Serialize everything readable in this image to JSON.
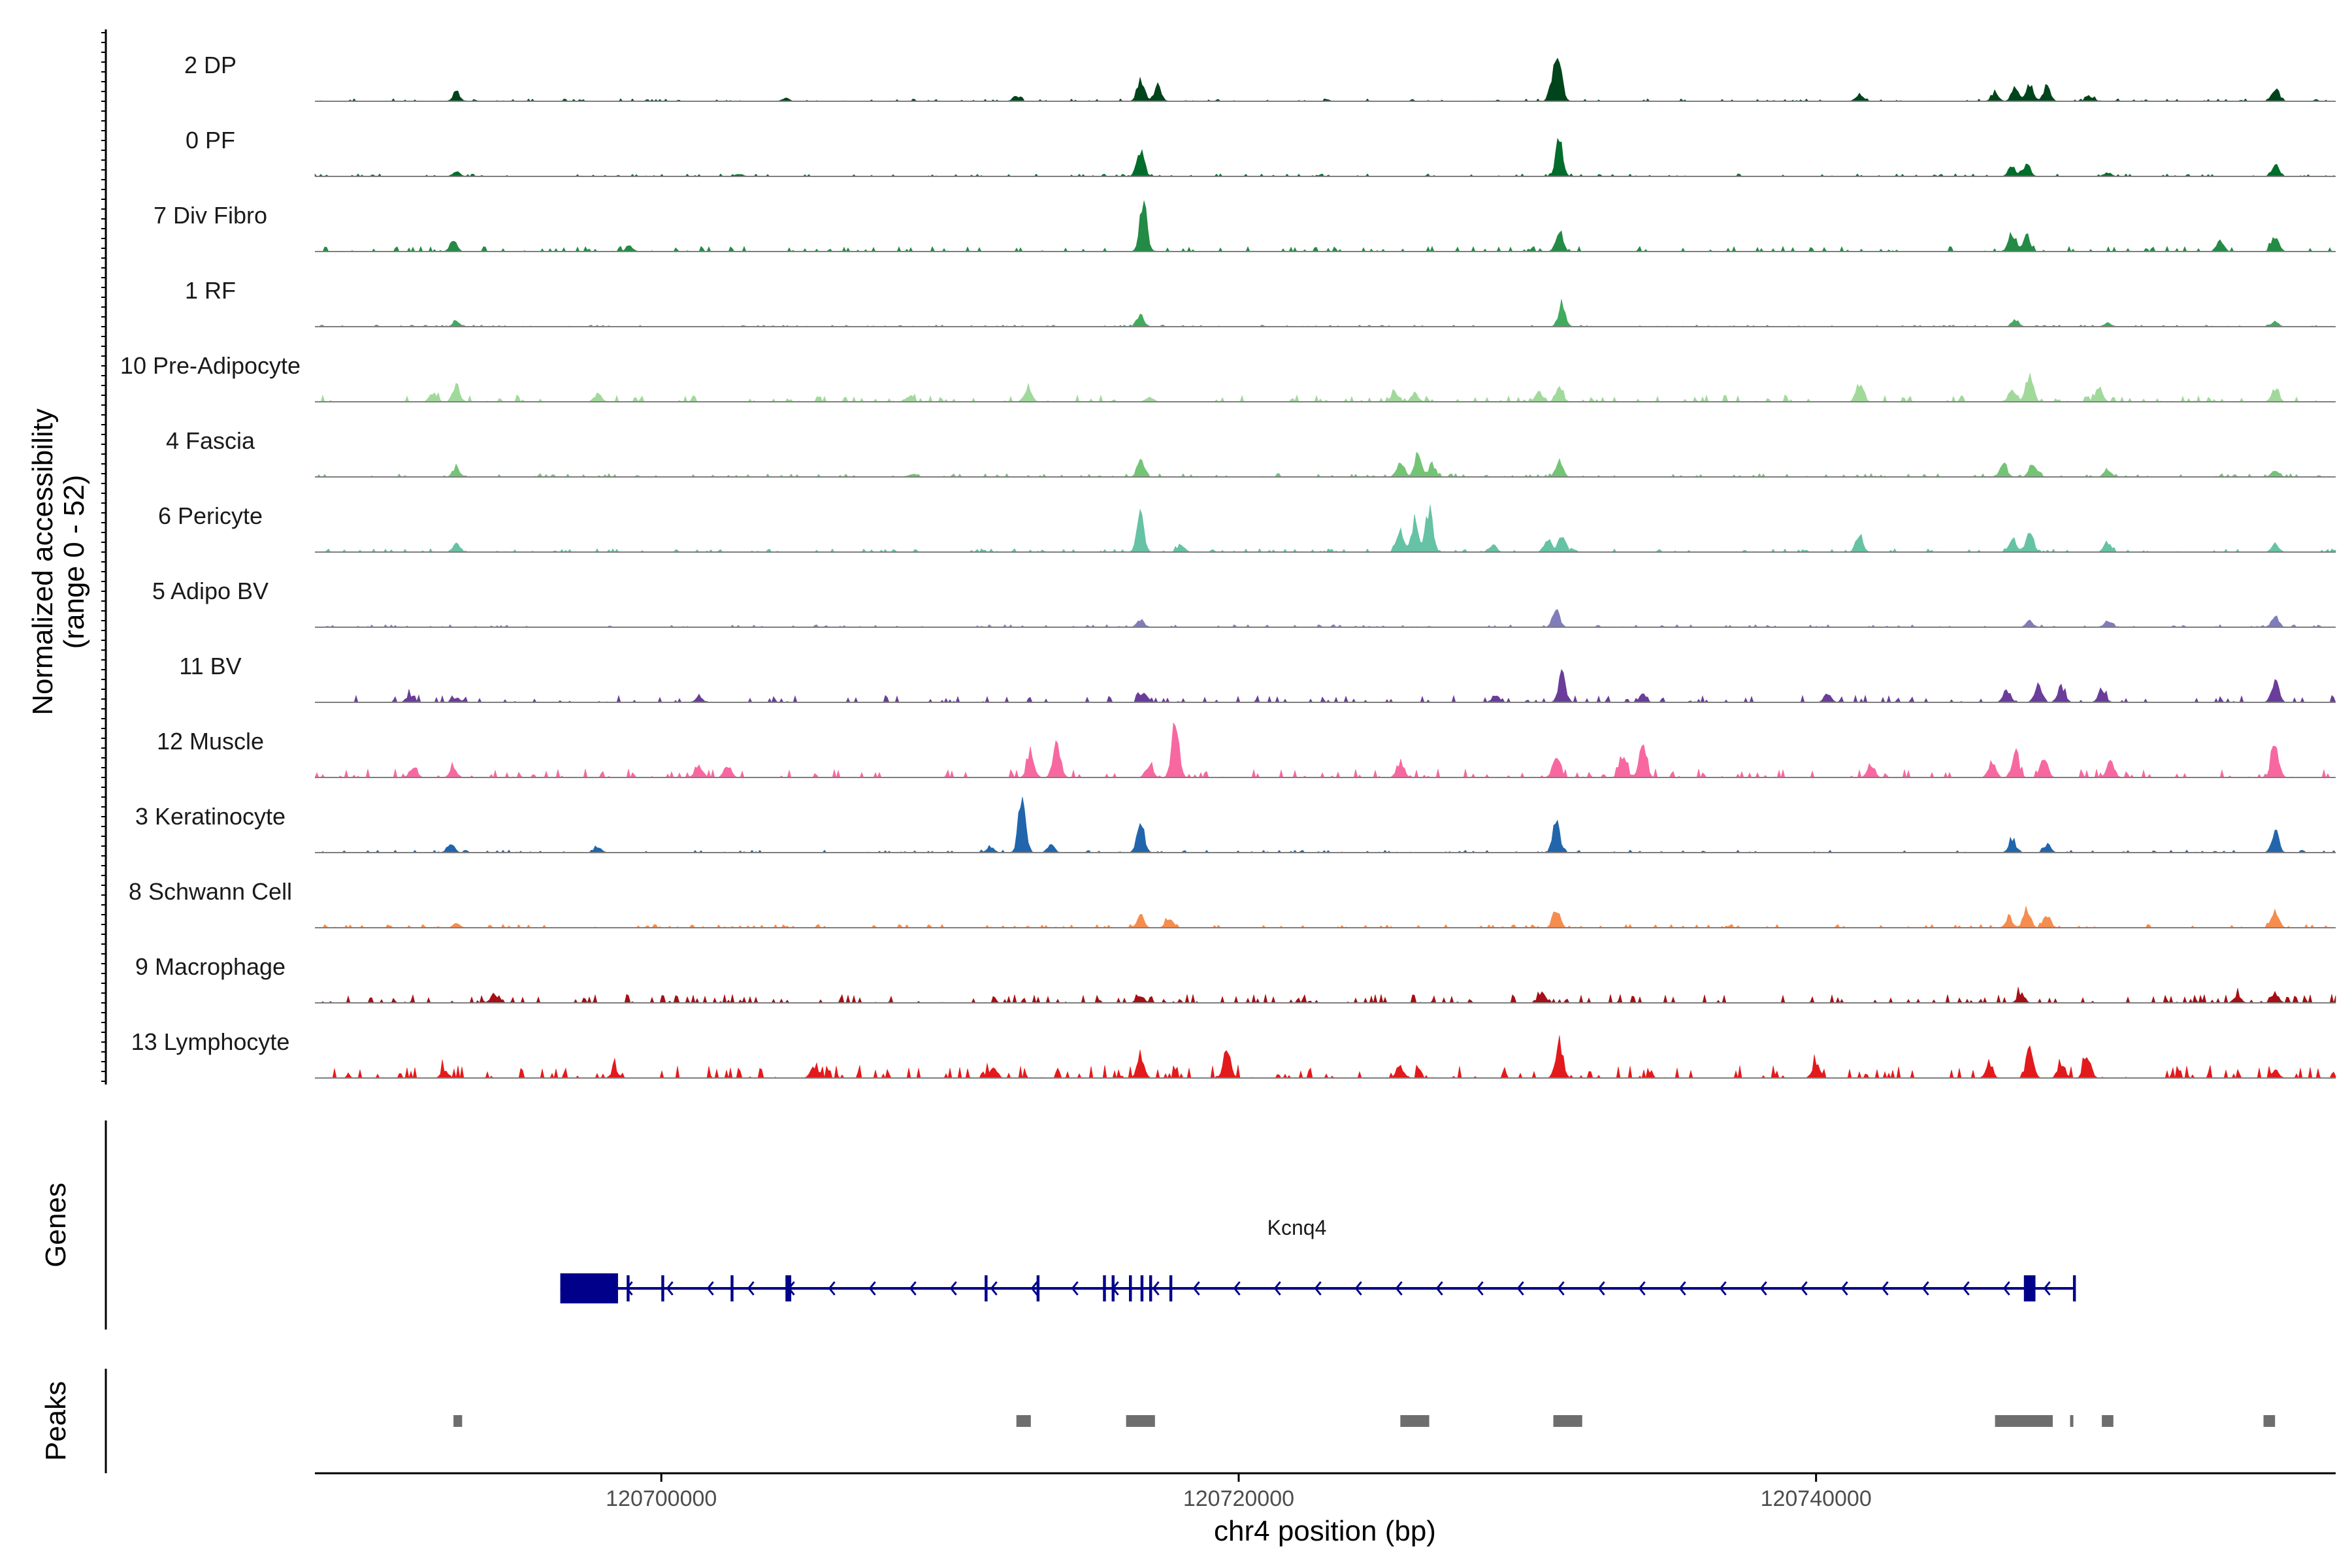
{
  "chart_data": {
    "type": "area",
    "title": "",
    "ylabel": "Normalized accessibility",
    "ylabel_range": "(range 0 - 52)",
    "yrange": [
      0,
      52
    ],
    "xlabel": "chr4 position (bp)",
    "chromosome": "chr4",
    "xlim": [
      120688000,
      120758000
    ],
    "xticks": [
      120700000,
      120720000,
      120740000
    ],
    "xtick_labels": [
      "120700000",
      "120720000",
      "120740000"
    ],
    "series": [
      {
        "name": "2 DP",
        "color": "#00441b",
        "peaks": [
          [
            120692900,
            0.15
          ],
          [
            120704300,
            0.05
          ],
          [
            120712300,
            0.08
          ],
          [
            120716600,
            0.35
          ],
          [
            120717200,
            0.25
          ],
          [
            120731100,
            0.55
          ],
          [
            120730900,
            0.35
          ],
          [
            120741500,
            0.12
          ],
          [
            120746200,
            0.15
          ],
          [
            120746900,
            0.22
          ],
          [
            120747400,
            0.28
          ],
          [
            120748000,
            0.25
          ],
          [
            120749500,
            0.08
          ],
          [
            120755900,
            0.2
          ]
        ],
        "noise": 0.03
      },
      {
        "name": "0 PF",
        "color": "#006d2c",
        "peaks": [
          [
            120692900,
            0.08
          ],
          [
            120702700,
            0.04
          ],
          [
            120716600,
            0.45
          ],
          [
            120731100,
            0.55
          ],
          [
            120746800,
            0.15
          ],
          [
            120747300,
            0.2
          ],
          [
            120750100,
            0.06
          ],
          [
            120755900,
            0.18
          ]
        ],
        "noise": 0.03
      },
      {
        "name": "7 Div Fibro",
        "color": "#238b45",
        "peaks": [
          [
            120692800,
            0.18
          ],
          [
            120698900,
            0.08
          ],
          [
            120716700,
            0.75
          ],
          [
            120731100,
            0.35
          ],
          [
            120746800,
            0.3
          ],
          [
            120747300,
            0.25
          ],
          [
            120754000,
            0.18
          ],
          [
            120755900,
            0.22
          ]
        ],
        "noise": 0.06
      },
      {
        "name": "1 RF",
        "color": "#41ab5d",
        "peaks": [
          [
            120692900,
            0.08
          ],
          [
            120716600,
            0.18
          ],
          [
            120731200,
            0.35
          ],
          [
            120746900,
            0.1
          ],
          [
            120750100,
            0.06
          ],
          [
            120755900,
            0.08
          ]
        ],
        "noise": 0.02
      },
      {
        "name": "10 Pre-Adipocyte",
        "color": "#a1d99b",
        "peaks": [
          [
            120692100,
            0.15
          ],
          [
            120692900,
            0.22
          ],
          [
            120697800,
            0.12
          ],
          [
            120708600,
            0.1
          ],
          [
            120712700,
            0.25
          ],
          [
            120716900,
            0.08
          ],
          [
            120725400,
            0.18
          ],
          [
            120726100,
            0.15
          ],
          [
            120730400,
            0.15
          ],
          [
            120731100,
            0.25
          ],
          [
            120741500,
            0.3
          ],
          [
            120746800,
            0.2
          ],
          [
            120747400,
            0.45
          ],
          [
            120749800,
            0.22
          ],
          [
            120755900,
            0.2
          ]
        ],
        "noise": 0.08
      },
      {
        "name": "4 Fascia",
        "color": "#74c476",
        "peaks": [
          [
            120692900,
            0.15
          ],
          [
            120708700,
            0.05
          ],
          [
            120716600,
            0.25
          ],
          [
            120725600,
            0.25
          ],
          [
            120726200,
            0.35
          ],
          [
            120726700,
            0.2
          ],
          [
            120731100,
            0.25
          ],
          [
            120746500,
            0.2
          ],
          [
            120747500,
            0.22
          ],
          [
            120750100,
            0.12
          ],
          [
            120755900,
            0.1
          ]
        ],
        "noise": 0.04
      },
      {
        "name": "6 Pericyte",
        "color": "#66c2a4",
        "peaks": [
          [
            120692900,
            0.15
          ],
          [
            120716600,
            0.55
          ],
          [
            120718000,
            0.12
          ],
          [
            120725600,
            0.35
          ],
          [
            120726100,
            0.5
          ],
          [
            120726600,
            0.65
          ],
          [
            120728800,
            0.12
          ],
          [
            120730700,
            0.2
          ],
          [
            120731200,
            0.28
          ],
          [
            120741500,
            0.28
          ],
          [
            120746800,
            0.2
          ],
          [
            120747400,
            0.35
          ],
          [
            120750100,
            0.15
          ],
          [
            120755900,
            0.15
          ]
        ],
        "noise": 0.04
      },
      {
        "name": "5 Adipo BV",
        "color": "#807dba",
        "peaks": [
          [
            120716600,
            0.12
          ],
          [
            120731000,
            0.28
          ],
          [
            120747400,
            0.1
          ],
          [
            120750100,
            0.1
          ],
          [
            120755900,
            0.18
          ]
        ],
        "noise": 0.03
      },
      {
        "name": "11 BV",
        "color": "#6a3d9a",
        "peaks": [
          [
            120691300,
            0.12
          ],
          [
            120692900,
            0.08
          ],
          [
            120701300,
            0.08
          ],
          [
            120716700,
            0.18
          ],
          [
            120728900,
            0.12
          ],
          [
            120731200,
            0.45
          ],
          [
            120734000,
            0.12
          ],
          [
            120740400,
            0.15
          ],
          [
            120746600,
            0.2
          ],
          [
            120747700,
            0.3
          ],
          [
            120748500,
            0.25
          ],
          [
            120749900,
            0.22
          ],
          [
            120755900,
            0.35
          ]
        ],
        "noise": 0.08
      },
      {
        "name": "12 Muscle",
        "color": "#f768a1",
        "peaks": [
          [
            120691400,
            0.15
          ],
          [
            120692800,
            0.15
          ],
          [
            120701300,
            0.2
          ],
          [
            120702300,
            0.18
          ],
          [
            120712800,
            0.35
          ],
          [
            120713700,
            0.6
          ],
          [
            120716900,
            0.2
          ],
          [
            120717800,
            0.85
          ],
          [
            120725600,
            0.25
          ],
          [
            120731000,
            0.35
          ],
          [
            120733300,
            0.35
          ],
          [
            120734000,
            0.65
          ],
          [
            120741900,
            0.22
          ],
          [
            120746100,
            0.25
          ],
          [
            120746900,
            0.35
          ],
          [
            120747900,
            0.35
          ],
          [
            120750200,
            0.28
          ],
          [
            120755900,
            0.55
          ]
        ],
        "noise": 0.1
      },
      {
        "name": "3 Keratinocyte",
        "color": "#2166ac",
        "peaks": [
          [
            120692700,
            0.15
          ],
          [
            120697800,
            0.1
          ],
          [
            120711400,
            0.1
          ],
          [
            120712500,
            0.9
          ],
          [
            120713500,
            0.12
          ],
          [
            120716600,
            0.5
          ],
          [
            120731000,
            0.5
          ],
          [
            120746800,
            0.2
          ],
          [
            120748000,
            0.12
          ],
          [
            120755900,
            0.35
          ]
        ],
        "noise": 0.03
      },
      {
        "name": "8 Schwann Cell",
        "color": "#f58d4f",
        "peaks": [
          [
            120692900,
            0.06
          ],
          [
            120716600,
            0.18
          ],
          [
            120717600,
            0.15
          ],
          [
            120731000,
            0.3
          ],
          [
            120746700,
            0.15
          ],
          [
            120747300,
            0.3
          ],
          [
            120748000,
            0.2
          ],
          [
            120755900,
            0.25
          ]
        ],
        "noise": 0.04
      },
      {
        "name": "9 Macrophage",
        "color": "#a50f15",
        "peaks": [
          [
            120694200,
            0.12
          ],
          [
            120716600,
            0.12
          ],
          [
            120730500,
            0.15
          ],
          [
            120747100,
            0.15
          ],
          [
            120754600,
            0.12
          ],
          [
            120755900,
            0.15
          ]
        ],
        "noise": 0.1
      },
      {
        "name": "13 Lymphocyte",
        "color": "#e31a1c",
        "peaks": [
          [
            120692500,
            0.12
          ],
          [
            120698400,
            0.12
          ],
          [
            120705300,
            0.18
          ],
          [
            120711500,
            0.2
          ],
          [
            120716600,
            0.3
          ],
          [
            120719600,
            0.45
          ],
          [
            120725600,
            0.18
          ],
          [
            120731100,
            0.6
          ],
          [
            120740000,
            0.25
          ],
          [
            120746000,
            0.18
          ],
          [
            120747400,
            0.45
          ],
          [
            120748500,
            0.25
          ],
          [
            120749400,
            0.35
          ],
          [
            120755900,
            0.12
          ]
        ],
        "noise": 0.15
      }
    ],
    "genes": {
      "title": "Genes",
      "name": "Kcnq4",
      "color": "#00008b",
      "strand": "-",
      "start": 120696500,
      "end": 120748900,
      "exons": [
        [
          120696500,
          120698500
        ],
        [
          120698800,
          120698900
        ],
        [
          120700000,
          120700100
        ],
        [
          120702400,
          120702500
        ],
        [
          120704300,
          120704500
        ],
        [
          120711200,
          120711300
        ],
        [
          120713000,
          120713100
        ],
        [
          120715300,
          120715400
        ],
        [
          120715600,
          120715700
        ],
        [
          120716200,
          120716300
        ],
        [
          120716600,
          120716700
        ],
        [
          120716900,
          120717000
        ],
        [
          120717600,
          120717700
        ],
        [
          120747200,
          120747600
        ],
        [
          120748900,
          120749000
        ]
      ]
    },
    "peaks_track": {
      "title": "Peaks",
      "color": "#6e6e6e",
      "regions": [
        [
          120692800,
          120693100
        ],
        [
          120712300,
          120712800
        ],
        [
          120716100,
          120717100
        ],
        [
          120725600,
          120726600
        ],
        [
          120730900,
          120731900
        ],
        [
          120746200,
          120748200
        ],
        [
          120748800,
          120748900
        ],
        [
          120749900,
          120750300
        ],
        [
          120755500,
          120755900
        ]
      ]
    }
  }
}
